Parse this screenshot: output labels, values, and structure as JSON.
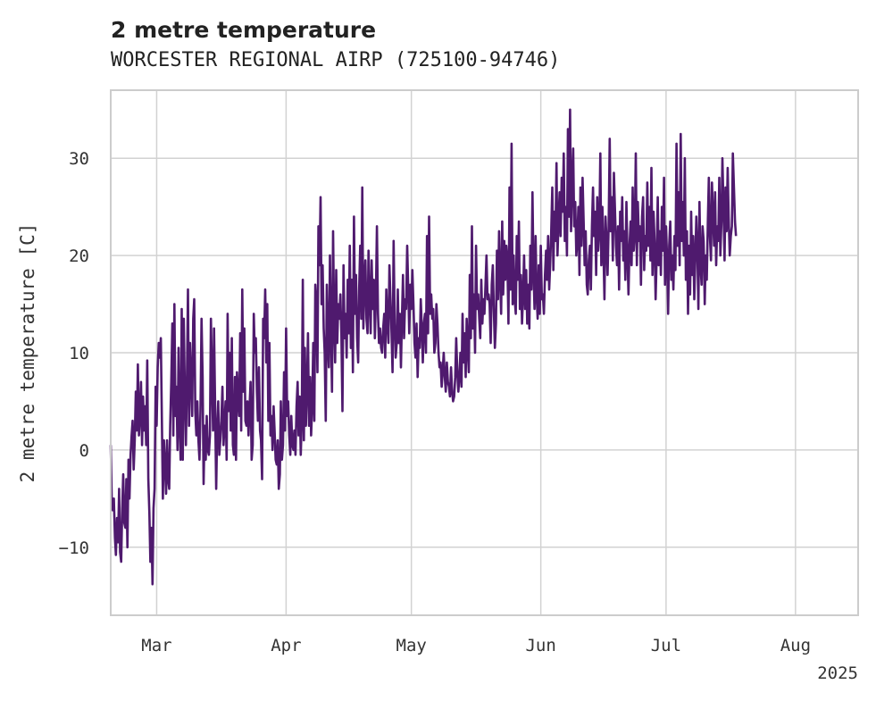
{
  "chart_data": {
    "type": "line",
    "title": "2 metre temperature",
    "subtitle": "WORCESTER REGIONAL AIRP (725100-94746)",
    "xlabel": "",
    "ylabel": "2 metre temperature [C]",
    "x_year_label": "2025",
    "x_ticks": [
      {
        "label": "Mar",
        "date": "2025-03-01"
      },
      {
        "label": "Apr",
        "date": "2025-04-01"
      },
      {
        "label": "May",
        "date": "2025-05-01"
      },
      {
        "label": "Jun",
        "date": "2025-06-01"
      },
      {
        "label": "Jul",
        "date": "2025-07-01"
      },
      {
        "label": "Aug",
        "date": "2025-08-01"
      }
    ],
    "xlim": [
      "2025-02-18",
      "2025-08-16"
    ],
    "y_ticks": [
      -10,
      0,
      10,
      20,
      30
    ],
    "ylim": [
      -17,
      37
    ],
    "grid": true,
    "line_color": "#4f1a6e",
    "series": [
      {
        "x_start": "2025-02-18",
        "x_step_days": 0.25,
        "values": [
          0.5,
          -5.5,
          -6.2,
          -5.0,
          -9.0,
          -10.8,
          -7.0,
          -9.5,
          -4.0,
          -10.5,
          -11.5,
          -6.0,
          -2.5,
          -7.5,
          -8.0,
          -3.0,
          -10.0,
          -1.0,
          -5.0,
          -0.5,
          1.5,
          3.0,
          -2.0,
          1.0,
          6.0,
          2.0,
          8.8,
          1.5,
          3.5,
          7.0,
          0.5,
          5.5,
          2.0,
          4.5,
          0.5,
          9.2,
          -3.0,
          -6.5,
          -11.5,
          -8.0,
          -13.8,
          -6.0,
          -4.0,
          6.5,
          2.5,
          8.5,
          11.0,
          9.5,
          11.5,
          3.0,
          -5.0,
          1.0,
          -1.5,
          -4.5,
          1.0,
          -3.0,
          -4.0,
          2.5,
          7.0,
          13.0,
          1.5,
          15.0,
          3.5,
          6.5,
          0.0,
          10.5,
          2.5,
          -1.0,
          14.5,
          -1.0,
          13.5,
          6.0,
          0.5,
          7.0,
          16.5,
          2.5,
          11.0,
          7.5,
          3.5,
          13.5,
          15.5,
          4.0,
          1.5,
          5.0,
          1.0,
          -1.0,
          4.0,
          13.5,
          7.5,
          -3.5,
          2.5,
          -1.0,
          3.5,
          0.0,
          -0.5,
          1.5,
          13.5,
          7.5,
          2.0,
          12.5,
          4.5,
          -4.0,
          2.0,
          5.0,
          -0.5,
          1.0,
          3.0,
          6.5,
          0.5,
          2.5,
          5.0,
          -1.0,
          14.0,
          4.0,
          10.0,
          2.0,
          11.5,
          0.5,
          -0.5,
          7.5,
          -1.0,
          8.0,
          5.5,
          3.5,
          12.0,
          2.0,
          16.5,
          6.0,
          12.5,
          3.0,
          2.5,
          5.0,
          1.5,
          4.5,
          7.0,
          -1.0,
          0.5,
          14.0,
          10.0,
          11.5,
          6.0,
          3.0,
          8.5,
          2.0,
          1.0,
          -3.0,
          13.5,
          11.5,
          16.5,
          9.0,
          15.0,
          3.0,
          11.0,
          1.5,
          3.5,
          0.0,
          4.5,
          2.0,
          -1.0,
          -1.5,
          1.0,
          -4.0,
          -2.5,
          5.0,
          -1.0,
          0.5,
          8.0,
          2.0,
          12.5,
          3.5,
          5.0,
          1.5,
          -0.5,
          3.5,
          0.5,
          0.0,
          2.0,
          -0.5,
          4.5,
          7.0,
          1.5,
          5.5,
          -0.5,
          3.0,
          17.5,
          1.0,
          10.5,
          2.5,
          6.5,
          12.0,
          2.5,
          7.5,
          1.5,
          4.5,
          11.0,
          3.0,
          17.0,
          15.0,
          8.0,
          23.0,
          19.0,
          26.0,
          15.0,
          19.0,
          12.5,
          10.0,
          3.0,
          17.0,
          11.0,
          8.5,
          20.0,
          12.0,
          6.0,
          22.5,
          13.0,
          9.0,
          18.5,
          11.0,
          15.0,
          13.5,
          16.0,
          12.0,
          4.0,
          19.0,
          11.5,
          14.0,
          9.5,
          17.5,
          12.0,
          21.0,
          10.5,
          17.5,
          8.0,
          24.0,
          14.0,
          18.0,
          11.5,
          9.0,
          16.5,
          21.0,
          13.5,
          27.0,
          12.5,
          17.0,
          19.5,
          13.5,
          12.0,
          20.5,
          15.5,
          12.0,
          19.5,
          14.5,
          17.5,
          11.5,
          15.5,
          23.0,
          14.0,
          11.0,
          12.5,
          10.5,
          10.0,
          12.5,
          14.0,
          9.5,
          16.5,
          13.0,
          11.0,
          19.0,
          15.5,
          12.0,
          8.0,
          21.5,
          13.0,
          9.5,
          11.0,
          16.5,
          11.0,
          14.0,
          8.5,
          13.5,
          18.0,
          11.5,
          15.5,
          14.5,
          21.0,
          16.5,
          12.0,
          17.0,
          14.5,
          18.5,
          15.0,
          11.0,
          9.5,
          13.0,
          7.5,
          11.5,
          10.5,
          15.5,
          12.5,
          9.0,
          13.0,
          14.0,
          10.0,
          22.0,
          12.0,
          24.0,
          14.0,
          16.0,
          13.5,
          14.5,
          10.0,
          11.0,
          15.0,
          13.0,
          10.0,
          8.5,
          9.0,
          6.5,
          8.0,
          10.0,
          7.5,
          6.0,
          9.0,
          7.0,
          6.5,
          5.5,
          8.5,
          6.0,
          5.0,
          5.5,
          7.5,
          11.5,
          8.0,
          6.0,
          7.5,
          10.0,
          6.5,
          14.0,
          9.0,
          12.0,
          7.5,
          13.5,
          10.5,
          8.0,
          18.0,
          11.5,
          23.0,
          12.5,
          16.0,
          10.0,
          21.0,
          14.5,
          16.0,
          13.5,
          11.5,
          17.5,
          13.0,
          15.5,
          14.0,
          17.0,
          20.0,
          15.5,
          16.0,
          15.0,
          11.0,
          17.0,
          19.0,
          14.5,
          10.5,
          13.0,
          20.5,
          15.5,
          22.5,
          18.0,
          14.0,
          23.5,
          16.0,
          21.5,
          17.5,
          21.0,
          19.5,
          13.0,
          27.0,
          16.5,
          31.5,
          15.0,
          20.0,
          15.5,
          14.0,
          22.0,
          17.5,
          23.5,
          14.5,
          18.0,
          13.0,
          16.0,
          20.0,
          14.5,
          18.5,
          13.0,
          17.0,
          12.5,
          21.0,
          16.5,
          26.5,
          18.5,
          14.5,
          22.0,
          16.0,
          13.5,
          19.0,
          14.0,
          21.0,
          15.5,
          16.0,
          14.0,
          18.0,
          20.5,
          17.5,
          22.0,
          16.5,
          19.0,
          22.5,
          27.0,
          18.5,
          24.5,
          21.5,
          29.5,
          20.0,
          23.5,
          26.5,
          22.0,
          28.0,
          24.5,
          30.5,
          21.5,
          25.0,
          20.0,
          33.0,
          24.0,
          35.0,
          22.5,
          27.5,
          31.0,
          23.0,
          25.5,
          20.0,
          21.5,
          25.0,
          18.0,
          27.0,
          21.0,
          28.0,
          23.5,
          19.0,
          22.5,
          17.0,
          16.0,
          19.5,
          21.0,
          16.5,
          23.0,
          27.0,
          22.0,
          24.5,
          18.0,
          26.0,
          20.5,
          22.5,
          30.5,
          19.0,
          25.0,
          20.5,
          15.5,
          24.0,
          21.5,
          18.0,
          23.0,
          32.0,
          22.5,
          26.0,
          19.5,
          28.5,
          25.0,
          21.0,
          19.0,
          23.0,
          16.5,
          24.5,
          21.5,
          26.0,
          19.5,
          22.5,
          17.5,
          25.5,
          20.0,
          16.0,
          21.0,
          23.5,
          19.0,
          27.0,
          20.5,
          22.0,
          30.5,
          19.0,
          25.5,
          21.5,
          23.0,
          17.0,
          24.0,
          26.0,
          18.5,
          22.0,
          20.5,
          27.5,
          21.0,
          25.0,
          19.5,
          29.0,
          18.0,
          24.5,
          21.5,
          15.5,
          20.0,
          26.0,
          19.0,
          22.5,
          18.0,
          25.0,
          20.5,
          28.0,
          17.0,
          23.0,
          19.5,
          14.0,
          21.0,
          23.5,
          17.5,
          20.0,
          16.5,
          22.0,
          18.5,
          31.5,
          21.0,
          26.5,
          19.0,
          32.5,
          21.5,
          25.5,
          20.0,
          30.0,
          17.5,
          22.5,
          14.0,
          21.0,
          16.0,
          24.5,
          18.0,
          22.0,
          15.5,
          19.5,
          24.0,
          20.5,
          14.5,
          25.5,
          19.0,
          17.0,
          23.0,
          21.5,
          15.0,
          20.0,
          17.5,
          23.5,
          28.0,
          22.0,
          19.5,
          27.5,
          24.0,
          21.0,
          26.5,
          19.0,
          23.0,
          21.5,
          28.0,
          20.0,
          23.5,
          30.0,
          25.0,
          19.5,
          27.0,
          22.5,
          29.0,
          24.0,
          20.0,
          22.0,
          23.0,
          30.5,
          27.0,
          23.5,
          22.0
        ]
      }
    ]
  }
}
